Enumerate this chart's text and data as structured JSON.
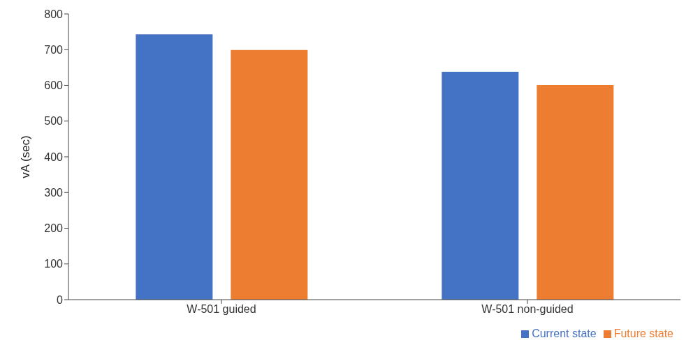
{
  "chart_data": {
    "type": "bar",
    "ylabel": "vA (sec)",
    "categories": [
      "W-501 guided",
      "W-501 non-guided"
    ],
    "series": [
      {
        "name": "Current state",
        "color": "#4472c4",
        "values": [
          743,
          638
        ]
      },
      {
        "name": "Future state",
        "color": "#ed7d31",
        "values": [
          699,
          601
        ]
      }
    ],
    "ylim": [
      0,
      800
    ],
    "yticks": [
      0,
      100,
      200,
      300,
      400,
      500,
      600,
      700,
      800
    ],
    "grid": false,
    "legend": "bottom right"
  }
}
